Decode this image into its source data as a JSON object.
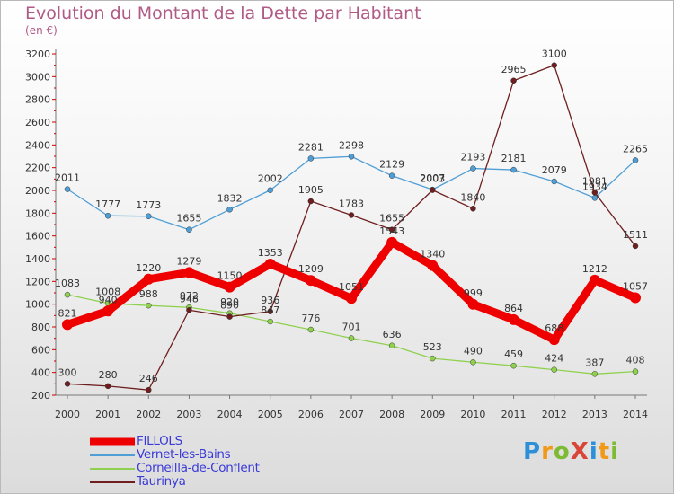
{
  "title": "Evolution du Montant de la Dette par Habitant",
  "unit_label": "(en €)",
  "logo": {
    "text": "ProXiti",
    "colors": [
      "#2d8fd8",
      "#f19a1a",
      "#7dbb35",
      "#d94536",
      "#2d8fd8",
      "#f19a1a",
      "#7dbb35"
    ]
  },
  "chart_data": {
    "type": "line",
    "title": "Evolution du Montant de la Dette par Habitant",
    "ylabel": "(en €)",
    "x": [
      "2000",
      "2001",
      "2002",
      "2003",
      "2004",
      "2005",
      "2006",
      "2007",
      "2008",
      "2009",
      "2010",
      "2011",
      "2012",
      "2013",
      "2014"
    ],
    "ylim": [
      200,
      3200
    ],
    "yticks": [
      200,
      400,
      600,
      800,
      1000,
      1200,
      1400,
      1600,
      1800,
      2000,
      2200,
      2400,
      2600,
      2800,
      3000,
      3200
    ],
    "grid": false,
    "legend_position": "bottom-left",
    "series": [
      {
        "name": "FILLOLS",
        "color": "#ee0000",
        "values": [
          821,
          940,
          1220,
          1279,
          1150,
          1353,
          1209,
          1051,
          1543,
          1340,
          999,
          864,
          688,
          1212,
          1057
        ]
      },
      {
        "name": "Vernet-les-Bains",
        "color": "#4f9ed6",
        "values": [
          2011,
          1777,
          1773,
          1655,
          1832,
          2002,
          2281,
          2298,
          2129,
          2007,
          2193,
          2181,
          2079,
          1934,
          2265
        ]
      },
      {
        "name": "Corneilla-de-Conflent",
        "color": "#8fd14f",
        "values": [
          1083,
          1008,
          988,
          972,
          920,
          847,
          776,
          701,
          636,
          523,
          490,
          459,
          424,
          387,
          408
        ]
      },
      {
        "name": "Taurinya",
        "color": "#6e1e1e",
        "values": [
          300,
          280,
          246,
          948,
          890,
          936,
          1905,
          1783,
          1655,
          2003,
          1840,
          2965,
          3100,
          1981,
          1511
        ]
      }
    ]
  }
}
